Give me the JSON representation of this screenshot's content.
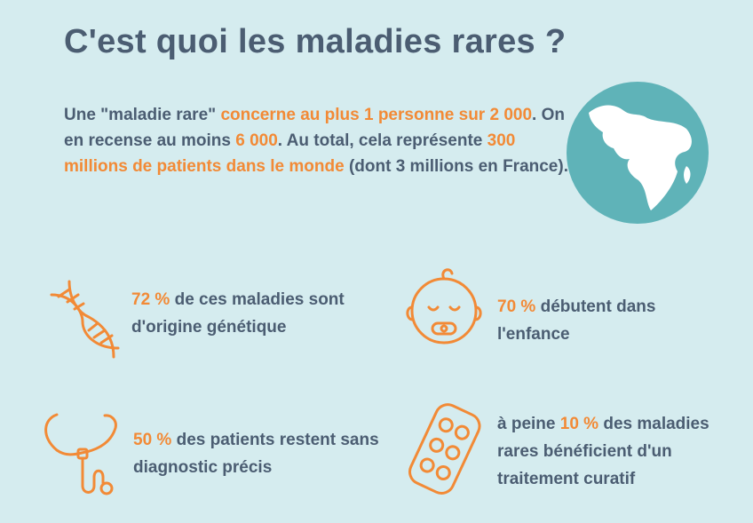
{
  "title": "C'est quoi les maladies rares ?",
  "intro": [
    "Une \"maladie rare\" ",
    "concerne au plus 1 personne sur 2 000",
    ". On en recense au moins ",
    "6 000",
    ". Au total, cela représente ",
    "300 millions de patients dans le monde",
    " (dont 3 millions  en France)."
  ],
  "facts": [
    [
      "72 %",
      " de ces maladies sont d'origine génétique"
    ],
    [
      "70 %",
      " débutent dans l'enfance"
    ],
    [
      "50 %",
      " des patients restent sans diagnostic précis"
    ],
    [
      "à peine ",
      "10 %",
      " des maladies rares bénéficient d'un traitement curatif"
    ]
  ]
}
